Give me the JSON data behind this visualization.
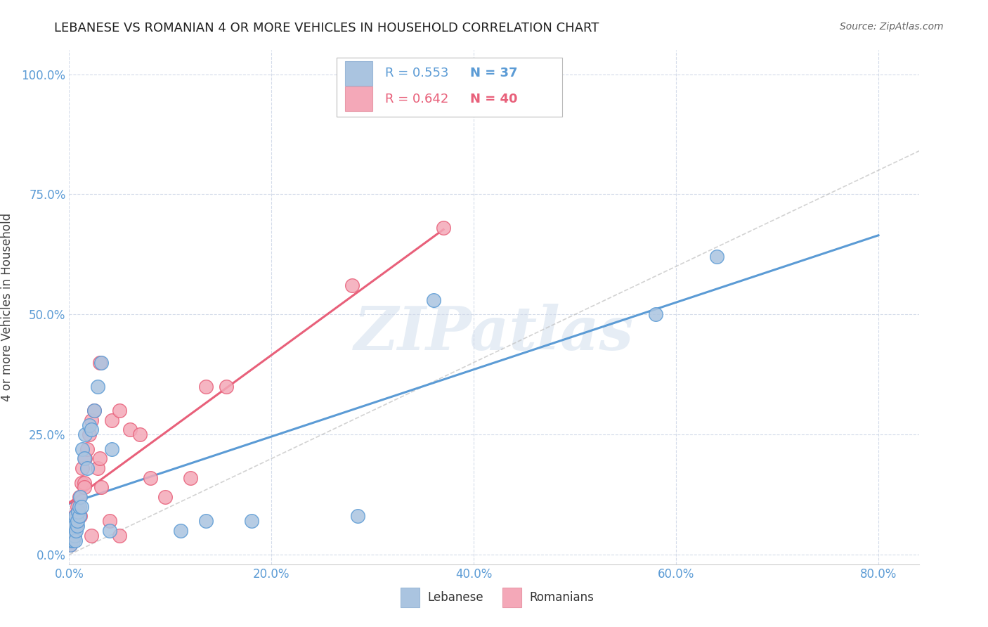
{
  "title": "LEBANESE VS ROMANIAN 4 OR MORE VEHICLES IN HOUSEHOLD CORRELATION CHART",
  "source": "Source: ZipAtlas.com",
  "xlabel_ticks": [
    "0.0%",
    "20.0%",
    "40.0%",
    "60.0%",
    "80.0%"
  ],
  "ylabel_ticks": [
    "0.0%",
    "25.0%",
    "50.0%",
    "75.0%",
    "100.0%"
  ],
  "xlim": [
    0.0,
    0.84
  ],
  "ylim": [
    -0.02,
    1.05
  ],
  "watermark": "ZIPatlas",
  "lebanese_color": "#aac4e0",
  "romanian_color": "#f4a8b8",
  "lebanese_line_color": "#5b9bd5",
  "romanian_line_color": "#e8607a",
  "diag_line_color": "#c0c0c0",
  "title_color": "#222222",
  "source_color": "#666666",
  "axis_label_color": "#5b9bd5",
  "grid_color": "#d0d8e8",
  "lebanese_x": [
    0.001,
    0.002,
    0.002,
    0.003,
    0.003,
    0.004,
    0.004,
    0.005,
    0.005,
    0.006,
    0.006,
    0.007,
    0.008,
    0.008,
    0.009,
    0.01,
    0.01,
    0.011,
    0.012,
    0.013,
    0.015,
    0.016,
    0.018,
    0.02,
    0.022,
    0.025,
    0.028,
    0.032,
    0.04,
    0.042,
    0.11,
    0.135,
    0.285,
    0.36,
    0.58,
    0.64,
    0.18
  ],
  "lebanese_y": [
    0.02,
    0.03,
    0.05,
    0.04,
    0.06,
    0.03,
    0.07,
    0.04,
    0.06,
    0.03,
    0.08,
    0.05,
    0.06,
    0.07,
    0.09,
    0.08,
    0.1,
    0.12,
    0.1,
    0.22,
    0.2,
    0.25,
    0.18,
    0.27,
    0.26,
    0.3,
    0.35,
    0.4,
    0.05,
    0.22,
    0.05,
    0.07,
    0.08,
    0.53,
    0.5,
    0.62,
    0.07
  ],
  "romanian_x": [
    0.001,
    0.002,
    0.003,
    0.003,
    0.004,
    0.005,
    0.005,
    0.006,
    0.007,
    0.008,
    0.009,
    0.01,
    0.011,
    0.012,
    0.013,
    0.015,
    0.016,
    0.018,
    0.02,
    0.022,
    0.025,
    0.028,
    0.03,
    0.032,
    0.04,
    0.042,
    0.05,
    0.06,
    0.07,
    0.08,
    0.095,
    0.12,
    0.135,
    0.155,
    0.28,
    0.37,
    0.03,
    0.015,
    0.05,
    0.022
  ],
  "romanian_y": [
    0.02,
    0.03,
    0.04,
    0.06,
    0.05,
    0.06,
    0.08,
    0.07,
    0.06,
    0.1,
    0.09,
    0.12,
    0.08,
    0.15,
    0.18,
    0.15,
    0.2,
    0.22,
    0.25,
    0.28,
    0.3,
    0.18,
    0.2,
    0.14,
    0.07,
    0.28,
    0.3,
    0.26,
    0.25,
    0.16,
    0.12,
    0.16,
    0.35,
    0.35,
    0.56,
    0.68,
    0.4,
    0.14,
    0.04,
    0.04
  ],
  "r_leb": "R = 0.553",
  "n_leb": "N = 37",
  "r_rom": "R = 0.642",
  "n_rom": "N = 40"
}
